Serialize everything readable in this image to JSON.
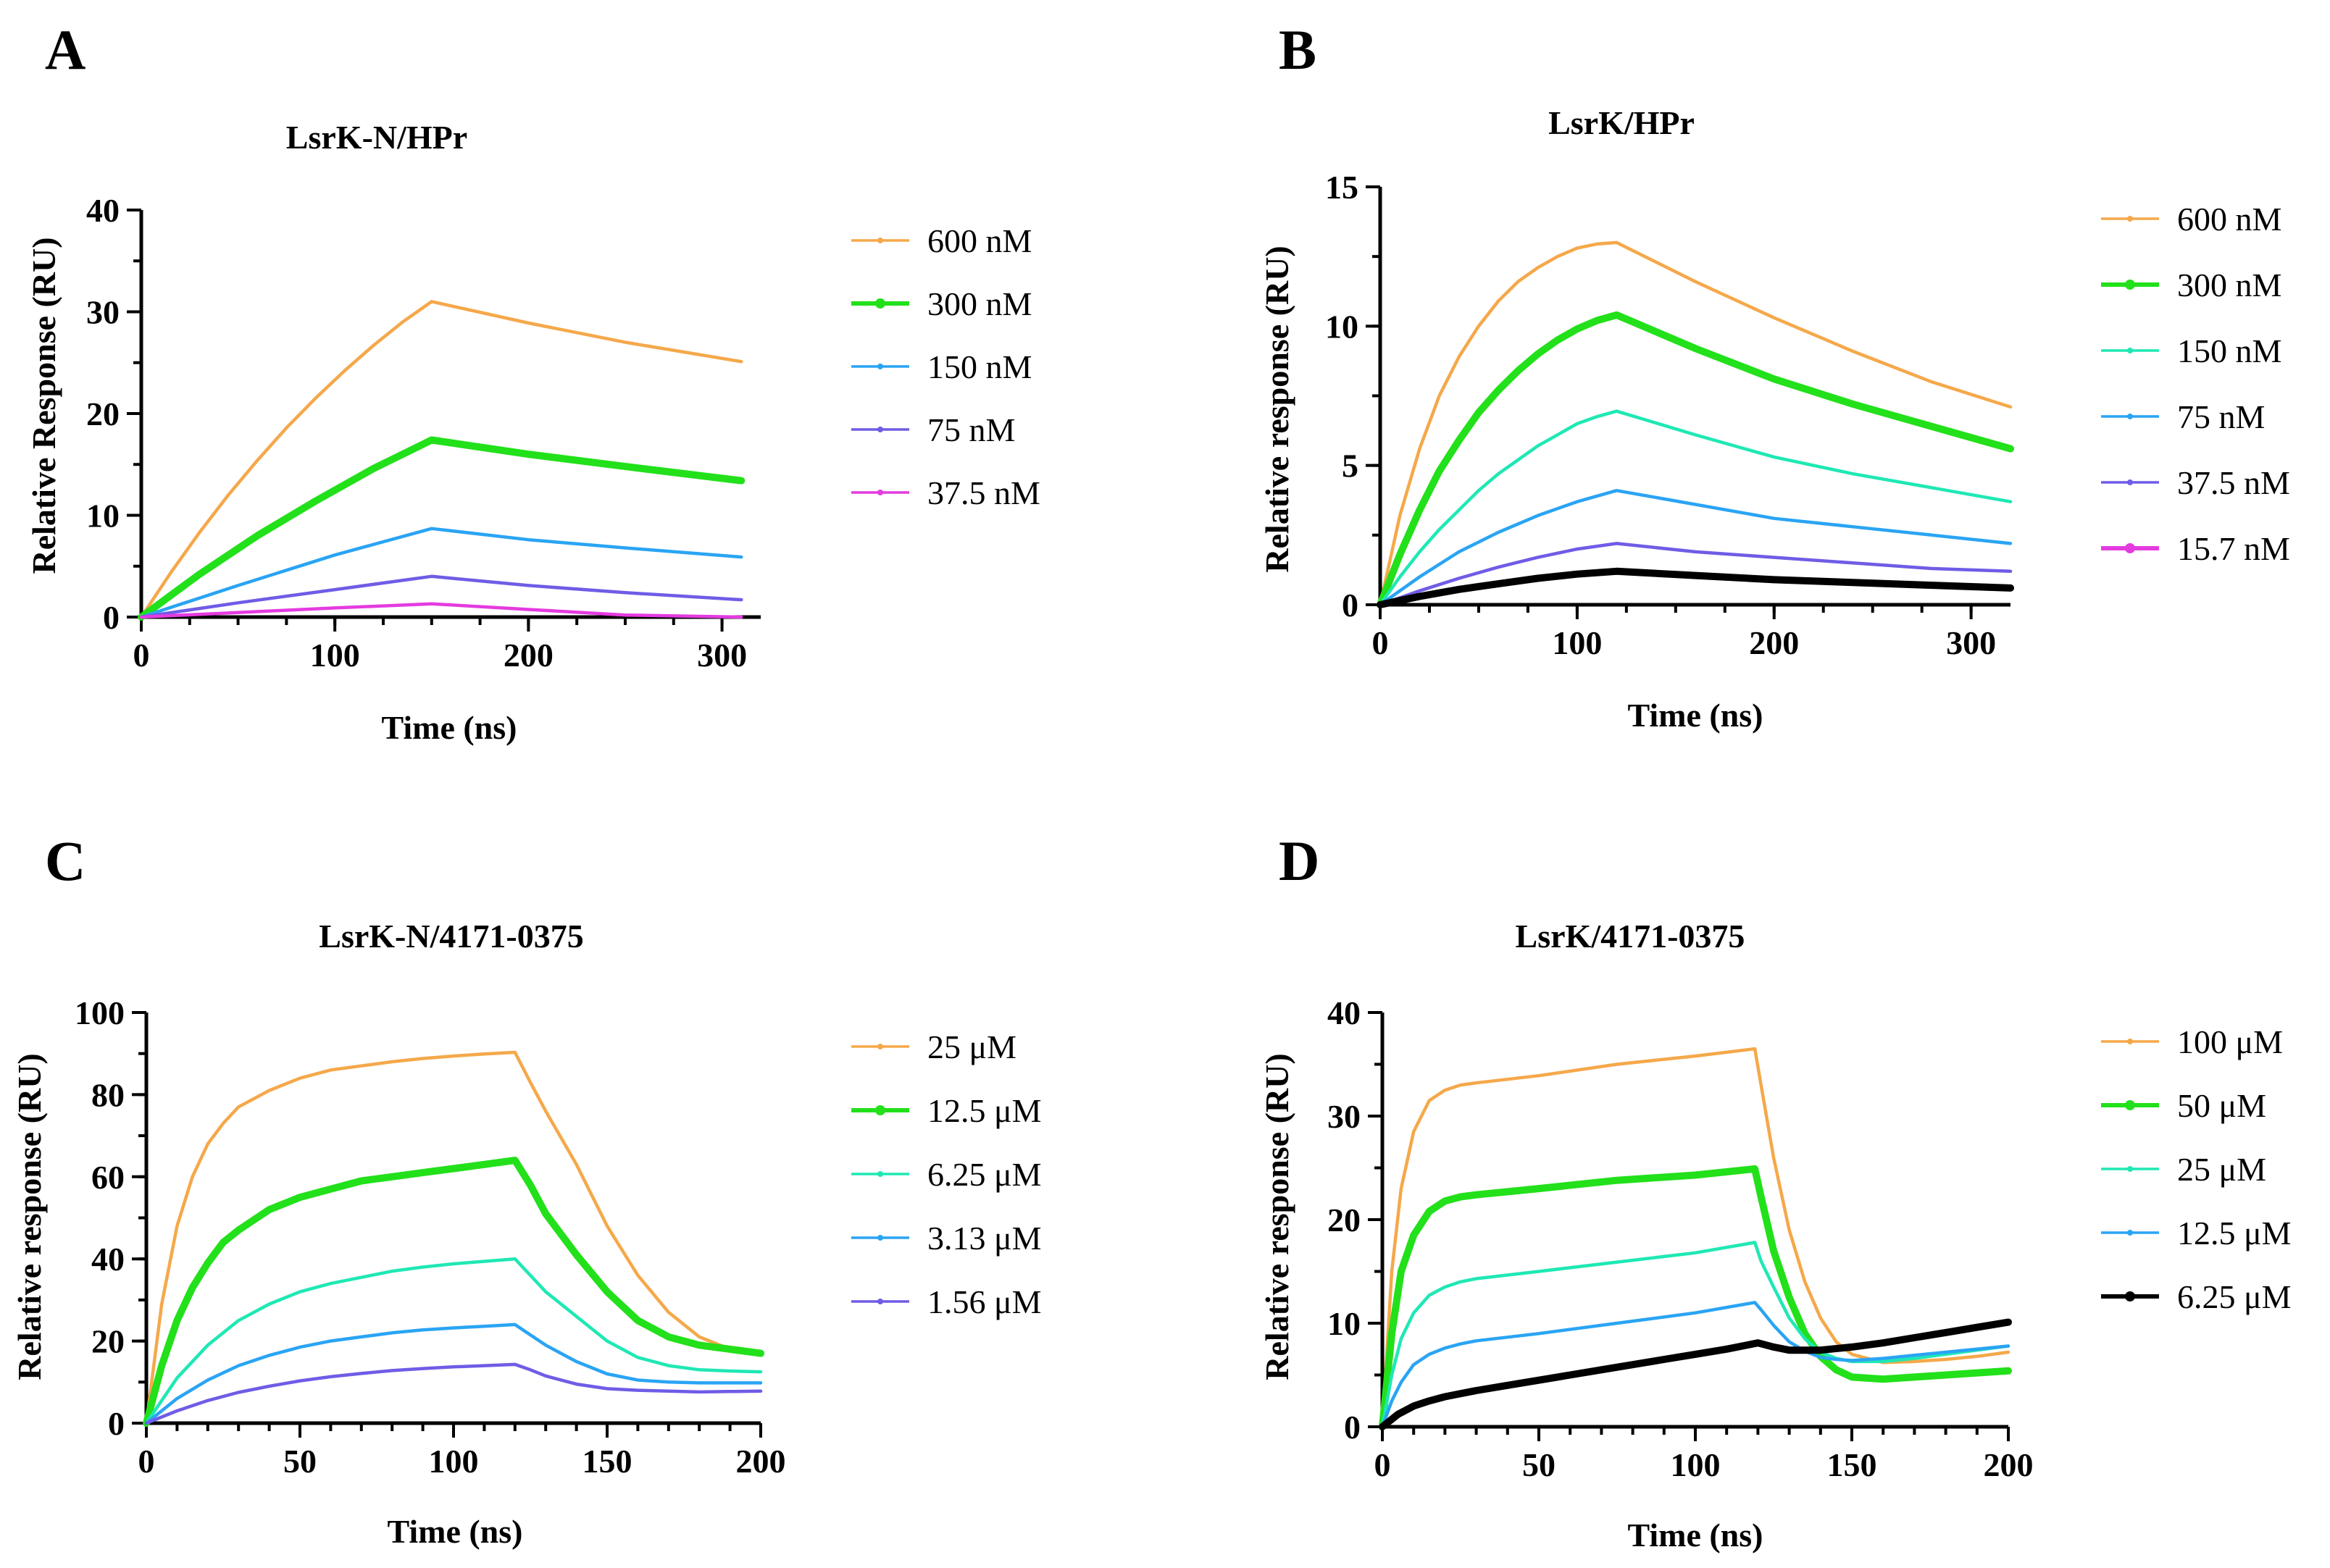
{
  "colors": {
    "orange": "#F5A84A",
    "green": "#22E01A",
    "cyan": "#1FE8B4",
    "blue": "#2AA4F4",
    "purple": "#6F5CE6",
    "magenta": "#E43BE0",
    "black": "#000000"
  },
  "chart_data": [
    {
      "panel": "A",
      "type": "line",
      "title": "LsrK-N/HPr",
      "xlabel": "Time (ns)",
      "ylabel": "Relative Response (RU)",
      "xlim": [
        0,
        320
      ],
      "ylim": [
        0,
        40
      ],
      "xticks": [
        0,
        100,
        200,
        300
      ],
      "yticks": [
        0,
        10,
        20,
        30,
        40
      ],
      "x_minor_step": 25,
      "y_minor_step": 5,
      "legend_position": "right",
      "series": [
        {
          "name": "600 nM",
          "color": "#F5A84A",
          "marker": "dot",
          "bold": false,
          "x": [
            0,
            15,
            30,
            45,
            60,
            75,
            90,
            105,
            120,
            135,
            150,
            200,
            250,
            310
          ],
          "y": [
            0,
            4.3,
            8.3,
            12.0,
            15.4,
            18.6,
            21.5,
            24.2,
            26.7,
            29.0,
            31.0,
            28.9,
            27.0,
            25.1
          ]
        },
        {
          "name": "300 nM",
          "color": "#22E01A",
          "marker": "dot",
          "bold": true,
          "x": [
            0,
            30,
            60,
            90,
            120,
            150,
            200,
            250,
            310
          ],
          "y": [
            0,
            4.2,
            8.0,
            11.4,
            14.6,
            17.4,
            16.0,
            14.8,
            13.4
          ]
        },
        {
          "name": "150 nM",
          "color": "#2AA4F4",
          "marker": "dot",
          "bold": false,
          "x": [
            0,
            50,
            100,
            150,
            200,
            250,
            310
          ],
          "y": [
            0,
            3.1,
            6.1,
            8.7,
            7.6,
            6.8,
            5.9
          ]
        },
        {
          "name": "75 nM",
          "color": "#6F5CE6",
          "marker": "dot",
          "bold": false,
          "x": [
            0,
            50,
            100,
            150,
            200,
            250,
            310
          ],
          "y": [
            0,
            1.4,
            2.7,
            4.0,
            3.1,
            2.4,
            1.7
          ]
        },
        {
          "name": "37.5 nM",
          "color": "#E43BE0",
          "marker": "dot",
          "bold": false,
          "x": [
            0,
            50,
            100,
            150,
            200,
            250,
            310
          ],
          "y": [
            0,
            0.45,
            0.9,
            1.3,
            0.75,
            0.2,
            0.0
          ]
        }
      ]
    },
    {
      "panel": "B",
      "type": "line",
      "title": "LsrK/HPr",
      "xlabel": "Time (ns)",
      "ylabel": "Relative response (RU)",
      "xlim": [
        0,
        320
      ],
      "ylim": [
        0,
        15
      ],
      "xticks": [
        0,
        100,
        200,
        300
      ],
      "yticks": [
        0,
        5,
        10,
        15
      ],
      "x_minor_step": 25,
      "y_minor_step": 2.5,
      "legend_position": "right",
      "series": [
        {
          "name": "600 nM",
          "color": "#F5A84A",
          "marker": "dot",
          "bold": false,
          "x": [
            0,
            10,
            20,
            30,
            40,
            50,
            60,
            70,
            80,
            90,
            100,
            110,
            120,
            160,
            200,
            240,
            280,
            320
          ],
          "y": [
            0,
            3.2,
            5.6,
            7.5,
            8.9,
            10.0,
            10.9,
            11.6,
            12.1,
            12.5,
            12.8,
            12.95,
            13.0,
            11.6,
            10.3,
            9.1,
            8.0,
            7.1
          ]
        },
        {
          "name": "300 nM",
          "color": "#22E01A",
          "marker": "dot",
          "bold": true,
          "x": [
            0,
            10,
            20,
            30,
            40,
            50,
            60,
            70,
            80,
            90,
            100,
            110,
            120,
            160,
            200,
            240,
            280,
            320
          ],
          "y": [
            0,
            1.8,
            3.4,
            4.8,
            5.9,
            6.9,
            7.7,
            8.4,
            9.0,
            9.5,
            9.9,
            10.2,
            10.4,
            9.2,
            8.1,
            7.2,
            6.4,
            5.6
          ]
        },
        {
          "name": "150 nM",
          "color": "#1FE8B4",
          "marker": "dot",
          "bold": false,
          "x": [
            0,
            10,
            20,
            30,
            40,
            50,
            60,
            70,
            80,
            90,
            100,
            110,
            120,
            160,
            200,
            240,
            280,
            320
          ],
          "y": [
            0,
            1.0,
            1.9,
            2.7,
            3.4,
            4.1,
            4.7,
            5.2,
            5.7,
            6.1,
            6.5,
            6.75,
            6.95,
            6.1,
            5.3,
            4.7,
            4.2,
            3.7
          ]
        },
        {
          "name": "75 nM",
          "color": "#2AA4F4",
          "marker": "dot",
          "bold": false,
          "x": [
            0,
            20,
            40,
            60,
            80,
            100,
            120,
            160,
            200,
            240,
            280,
            320
          ],
          "y": [
            0,
            1.0,
            1.9,
            2.6,
            3.2,
            3.7,
            4.1,
            3.6,
            3.1,
            2.8,
            2.5,
            2.2
          ]
        },
        {
          "name": "37.5 nM",
          "color": "#6F5CE6",
          "marker": "dot",
          "bold": false,
          "x": [
            0,
            20,
            40,
            60,
            80,
            100,
            120,
            160,
            200,
            240,
            280,
            320
          ],
          "y": [
            0,
            0.5,
            0.95,
            1.35,
            1.7,
            2.0,
            2.2,
            1.9,
            1.7,
            1.5,
            1.3,
            1.2
          ]
        },
        {
          "name": "15.7 nM",
          "color": "#000000",
          "legend_marker_color": "#E43BE0",
          "marker": "dot",
          "bold": true,
          "x": [
            0,
            20,
            40,
            60,
            80,
            100,
            120,
            160,
            200,
            240,
            280,
            320
          ],
          "y": [
            0,
            0.3,
            0.55,
            0.75,
            0.95,
            1.1,
            1.2,
            1.05,
            0.9,
            0.8,
            0.7,
            0.6
          ]
        }
      ]
    },
    {
      "panel": "C",
      "type": "line",
      "title": "LsrK-N/4171-0375",
      "xlabel": "Time (ns)",
      "ylabel": "Relative response (RU)",
      "xlim": [
        0,
        200
      ],
      "ylim": [
        0,
        100
      ],
      "xticks": [
        0,
        50,
        100,
        150,
        200
      ],
      "yticks": [
        0,
        20,
        40,
        60,
        80,
        100
      ],
      "x_minor_step": 10,
      "y_minor_step": 10,
      "legend_position": "right",
      "series": [
        {
          "name": "25 μM",
          "color": "#F5A84A",
          "marker": "dot",
          "bold": false,
          "x": [
            0,
            5,
            10,
            15,
            20,
            25,
            30,
            40,
            50,
            60,
            70,
            80,
            90,
            100,
            110,
            120,
            125,
            130,
            140,
            150,
            160,
            170,
            180,
            190,
            200
          ],
          "y": [
            0,
            29,
            48,
            60,
            68,
            73,
            77,
            81,
            84,
            86,
            87,
            88,
            88.8,
            89.4,
            89.9,
            90.3,
            83,
            76,
            63,
            48,
            36,
            27,
            21,
            18,
            17
          ]
        },
        {
          "name": "12.5 μM",
          "color": "#22E01A",
          "marker": "dot",
          "bold": true,
          "x": [
            0,
            5,
            10,
            15,
            20,
            25,
            30,
            40,
            50,
            60,
            70,
            80,
            90,
            100,
            110,
            120,
            125,
            130,
            140,
            150,
            160,
            170,
            180,
            190,
            200
          ],
          "y": [
            0,
            14,
            25,
            33,
            39,
            44,
            47,
            52,
            55,
            57,
            59,
            60,
            61,
            62,
            63,
            64,
            58,
            51,
            41,
            32,
            25,
            21,
            19,
            18,
            17
          ]
        },
        {
          "name": "6.25 μM",
          "color": "#1FE8B4",
          "marker": "dot",
          "bold": false,
          "x": [
            0,
            10,
            20,
            30,
            40,
            50,
            60,
            70,
            80,
            90,
            100,
            110,
            120,
            125,
            130,
            140,
            150,
            160,
            170,
            180,
            190,
            200
          ],
          "y": [
            0,
            11,
            19,
            25,
            29,
            32,
            34,
            35.5,
            37,
            38,
            38.8,
            39.4,
            40,
            36,
            32,
            26,
            20,
            16,
            14,
            13,
            12.7,
            12.5
          ]
        },
        {
          "name": "3.13 μM",
          "color": "#2AA4F4",
          "marker": "dot",
          "bold": false,
          "x": [
            0,
            10,
            20,
            30,
            40,
            50,
            60,
            70,
            80,
            90,
            100,
            110,
            120,
            125,
            130,
            140,
            150,
            160,
            170,
            180,
            190,
            200
          ],
          "y": [
            0,
            6,
            10.5,
            14,
            16.5,
            18.5,
            20,
            21,
            22,
            22.7,
            23.2,
            23.6,
            24,
            21.5,
            19,
            15,
            12,
            10.5,
            10,
            9.8,
            9.8,
            9.8
          ]
        },
        {
          "name": "1.56 μM",
          "color": "#6F5CE6",
          "marker": "dot",
          "bold": false,
          "x": [
            0,
            10,
            20,
            30,
            40,
            50,
            60,
            70,
            80,
            90,
            100,
            110,
            120,
            125,
            130,
            140,
            150,
            160,
            170,
            180,
            190,
            200
          ],
          "y": [
            0,
            3,
            5.5,
            7.5,
            9,
            10.3,
            11.3,
            12.1,
            12.8,
            13.3,
            13.7,
            14,
            14.3,
            13,
            11.5,
            9.5,
            8.4,
            8,
            7.8,
            7.6,
            7.7,
            7.8
          ]
        }
      ]
    },
    {
      "panel": "D",
      "type": "line",
      "title": "LsrK/4171-0375",
      "xlabel": "Time (ns)",
      "ylabel": "Relative response (RU)",
      "xlim": [
        0,
        200
      ],
      "ylim": [
        0,
        40
      ],
      "xticks": [
        0,
        50,
        100,
        150,
        200
      ],
      "yticks": [
        0,
        10,
        20,
        30,
        40
      ],
      "x_minor_step": 10,
      "y_minor_step": 5,
      "legend_position": "right",
      "series": [
        {
          "name": "100 μM",
          "color": "#F5A84A",
          "marker": "dot",
          "bold": false,
          "x": [
            0,
            3,
            6,
            10,
            15,
            20,
            25,
            30,
            50,
            75,
            100,
            119,
            121,
            125,
            130,
            135,
            140,
            145,
            150,
            160,
            170,
            180,
            190,
            200
          ],
          "y": [
            0,
            15,
            23,
            28.5,
            31.5,
            32.5,
            33,
            33.2,
            33.9,
            35,
            35.8,
            36.5,
            33,
            26,
            19,
            14,
            10.5,
            8.2,
            7,
            6.2,
            6.3,
            6.5,
            6.8,
            7.2
          ]
        },
        {
          "name": "50 μM",
          "color": "#22E01A",
          "marker": "dot",
          "bold": true,
          "x": [
            0,
            3,
            6,
            10,
            15,
            20,
            25,
            30,
            50,
            75,
            100,
            119,
            121,
            125,
            130,
            135,
            140,
            145,
            150,
            160,
            170,
            180,
            190,
            200
          ],
          "y": [
            0,
            9,
            15,
            18.5,
            20.8,
            21.8,
            22.2,
            22.4,
            23,
            23.8,
            24.3,
            24.9,
            22.2,
            17,
            12.5,
            9,
            6.8,
            5.5,
            4.8,
            4.6,
            4.8,
            5,
            5.2,
            5.4
          ]
        },
        {
          "name": "25 μM",
          "color": "#1FE8B4",
          "marker": "dot",
          "bold": false,
          "x": [
            0,
            3,
            6,
            10,
            15,
            20,
            25,
            30,
            50,
            75,
            100,
            119,
            121,
            125,
            130,
            135,
            140,
            145,
            150,
            160,
            170,
            180,
            190,
            200
          ],
          "y": [
            0,
            5,
            8.5,
            11,
            12.7,
            13.5,
            14,
            14.3,
            15,
            15.9,
            16.8,
            17.8,
            16,
            13.5,
            10.5,
            8.5,
            7.2,
            6.6,
            6.3,
            6.3,
            6.6,
            7,
            7.4,
            7.8
          ]
        },
        {
          "name": "12.5 μM",
          "color": "#2AA4F4",
          "marker": "dot",
          "bold": false,
          "x": [
            0,
            3,
            6,
            10,
            15,
            20,
            25,
            30,
            50,
            75,
            100,
            119,
            121,
            125,
            130,
            135,
            140,
            145,
            150,
            160,
            170,
            180,
            190,
            200
          ],
          "y": [
            0,
            2.5,
            4.3,
            6,
            7,
            7.6,
            8,
            8.3,
            9,
            10,
            11,
            12,
            11.3,
            9.8,
            8.2,
            7.3,
            6.7,
            6.5,
            6.4,
            6.6,
            6.9,
            7.2,
            7.5,
            7.8
          ]
        },
        {
          "name": "6.25 μM",
          "color": "#000000",
          "legend_marker_color": "#000000",
          "marker": "dot",
          "bold": true,
          "x": [
            0,
            5,
            10,
            15,
            20,
            30,
            40,
            50,
            60,
            70,
            80,
            90,
            100,
            110,
            120,
            125,
            130,
            140,
            150,
            160,
            170,
            180,
            190,
            200
          ],
          "y": [
            0,
            1.2,
            2,
            2.5,
            2.9,
            3.5,
            4,
            4.5,
            5,
            5.5,
            6,
            6.5,
            7,
            7.5,
            8.1,
            7.7,
            7.4,
            7.4,
            7.7,
            8.1,
            8.6,
            9.1,
            9.6,
            10.1
          ]
        }
      ]
    }
  ]
}
